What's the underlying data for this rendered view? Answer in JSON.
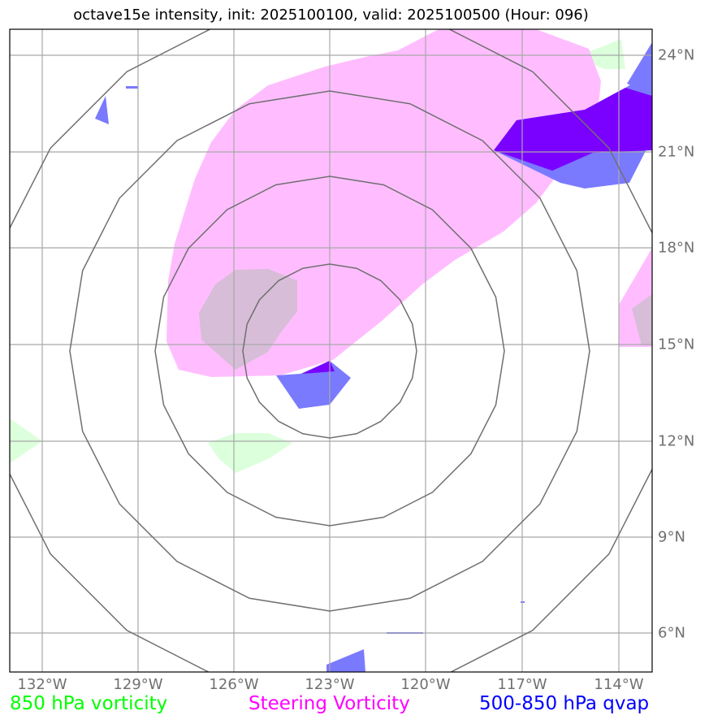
{
  "title": "octave15e intensity, init: 2025100100, valid: 2025100500 (Hour: 096)",
  "colors": {
    "vorticity_850": "#00ff00",
    "steering_vorticity": "#ff00ff",
    "qvap": "#0000ff",
    "grid": "#808080",
    "range_rings": "#707070"
  },
  "longitude_labels": [
    "132°W",
    "129°W",
    "126°W",
    "123°W",
    "120°W",
    "117°W",
    "114°W"
  ],
  "latitude_labels": [
    "24°N",
    "21°N",
    "18°N",
    "15°N",
    "12°N",
    "9°N",
    "6°N"
  ],
  "legend": {
    "vorticity_850": "850 hPa vorticity",
    "steering_vorticity": "Steering Vorticity",
    "qvap": "500-850 hPa qvap"
  }
}
